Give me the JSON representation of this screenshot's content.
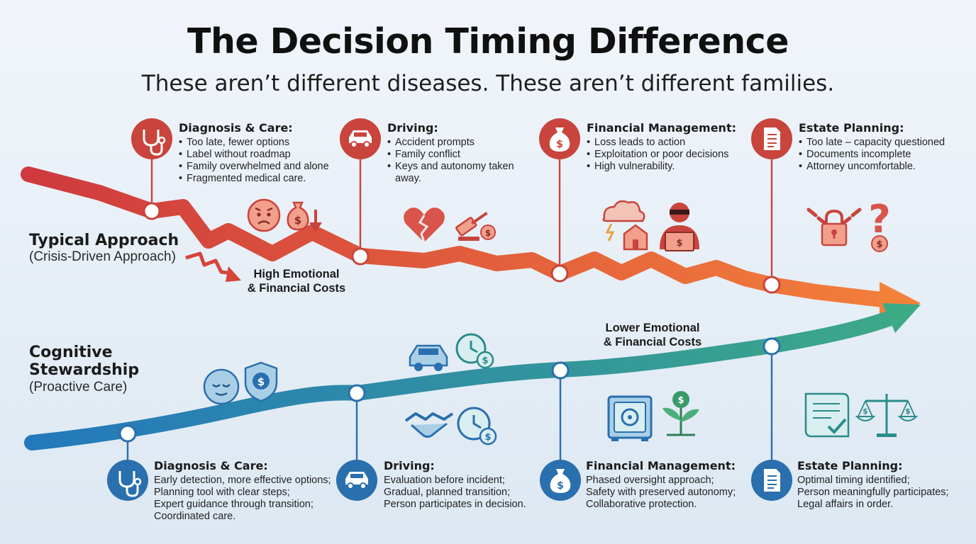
{
  "title": "The Decision Timing Difference",
  "subtitle": "These aren’t different diseases. These aren’t different families.",
  "colors": {
    "crisis": "#d2463c",
    "crisis_end": "#f27a3a",
    "proactive": "#2979b8",
    "proactive_end": "#3aa888",
    "icon_red": "#c8443c",
    "icon_blue": "#2a6fae"
  },
  "typical": {
    "label": "Typical Approach",
    "sublabel": "(Crisis-Driven Approach)",
    "cost_line1": "High Emotional",
    "cost_line2": "& Financial Costs",
    "stages": [
      {
        "icon": "stethoscope-icon",
        "heading": "Diagnosis & Care:",
        "items": [
          "Too late, fewer options",
          "Label without roadmap",
          "Family overwhelmed and alone",
          "Fragmented medical care."
        ],
        "illustrations": [
          "worried-face-icon",
          "money-bag-down-icon"
        ]
      },
      {
        "icon": "car-icon",
        "heading": "Driving:",
        "items": [
          "Accident prompts",
          "Family conflict",
          "Keys and autonomy taken away."
        ],
        "illustrations": [
          "broken-heart-icon",
          "gavel-icon"
        ]
      },
      {
        "icon": "money-bag-icon",
        "heading": "Financial Management:",
        "items": [
          "Loss leads to action",
          "Exploitation or poor decisions",
          "High vulnerability."
        ],
        "illustrations": [
          "storm-house-icon",
          "scammer-icon"
        ]
      },
      {
        "icon": "document-icon",
        "heading": "Estate Planning:",
        "items": [
          "Too late – capacity questioned",
          "Documents incomplete",
          "Attorney uncomfortable."
        ],
        "illustrations": [
          "chained-lock-icon",
          "question-dollar-icon"
        ]
      }
    ]
  },
  "proactive": {
    "label_line1": "Cognitive",
    "label_line2": "Stewardship",
    "sublabel": "(Proactive Care)",
    "cost_line1": "Lower Emotional",
    "cost_line2": "& Financial Costs",
    "stages": [
      {
        "icon": "stethoscope-icon",
        "heading": "Diagnosis & Care:",
        "items": [
          "Early detection, more effective options;",
          "Planning tool with clear steps;",
          "Expert guidance through transition;",
          "Coordinated care."
        ],
        "illustrations": [
          "calm-face-icon",
          "shield-dollar-icon"
        ]
      },
      {
        "icon": "car-icon",
        "heading": "Driving:",
        "items": [
          "Evaluation before incident;",
          "Gradual, planned transition;",
          "Person participates in decision."
        ],
        "illustrations": [
          "car-icon",
          "clock-dollar-icon",
          "handshake-icon",
          "clock-dollar-icon"
        ]
      },
      {
        "icon": "money-bag-icon",
        "heading": "Financial Management:",
        "items": [
          "Phased oversight approach;",
          "Safety with preserved autonomy;",
          "Collaborative protection."
        ],
        "illustrations": [
          "safe-icon",
          "growth-plant-icon"
        ]
      },
      {
        "icon": "document-icon",
        "heading": "Estate Planning:",
        "items": [
          "Optimal timing identified;",
          "Person meaningfully participates;",
          "Legal affairs in order."
        ],
        "illustrations": [
          "signed-document-icon",
          "scales-icon"
        ]
      }
    ]
  }
}
